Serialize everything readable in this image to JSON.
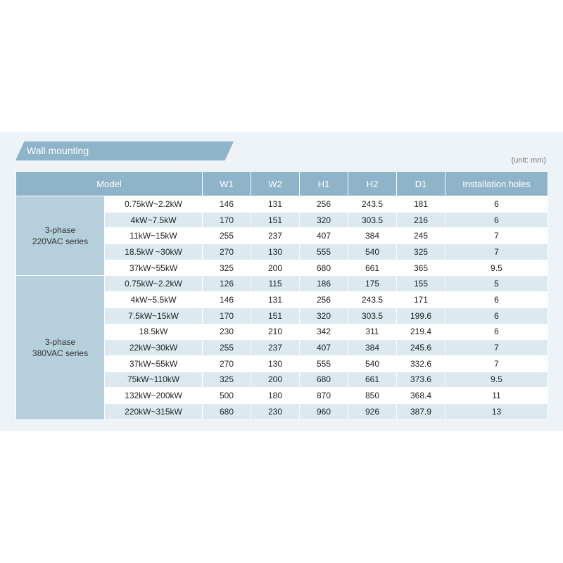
{
  "title": "Wall mounting",
  "unit": "(unit: mm)",
  "table": {
    "headers": [
      "Model",
      "W1",
      "W2",
      "H1",
      "H2",
      "D1",
      "Installation holes"
    ],
    "groups": [
      {
        "name": "3-phase 220VAC series",
        "rows": [
          [
            "0.75kW~2.2kW",
            "146",
            "131",
            "256",
            "243.5",
            "181",
            "6"
          ],
          [
            "4kW~7.5kW",
            "170",
            "151",
            "320",
            "303.5",
            "216",
            "6"
          ],
          [
            "11kW~15kW",
            "255",
            "237",
            "407",
            "384",
            "245",
            "7"
          ],
          [
            "18.5kW ~30kW",
            "270",
            "130",
            "555",
            "540",
            "325",
            "7"
          ],
          [
            "37kW~55kW",
            "325",
            "200",
            "680",
            "661",
            "365",
            "9.5"
          ]
        ]
      },
      {
        "name": "3-phase 380VAC series",
        "rows": [
          [
            "0.75kW~2.2kW",
            "126",
            "115",
            "186",
            "175",
            "155",
            "5"
          ],
          [
            "4kW~5.5kW",
            "146",
            "131",
            "256",
            "243.5",
            "171",
            "6"
          ],
          [
            "7.5kW~15kW",
            "170",
            "151",
            "320",
            "303.5",
            "199.6",
            "6"
          ],
          [
            "18.5kW",
            "230",
            "210",
            "342",
            "311",
            "219.4",
            "6"
          ],
          [
            "22kW~30kW",
            "255",
            "237",
            "407",
            "384",
            "245.6",
            "7"
          ],
          [
            "37kW~55kW",
            "270",
            "130",
            "555",
            "540",
            "332.6",
            "7"
          ],
          [
            "75kW~110kW",
            "325",
            "200",
            "680",
            "661",
            "373.6",
            "9.5"
          ],
          [
            "132kW~200kW",
            "500",
            "180",
            "870",
            "850",
            "368.4",
            "11"
          ],
          [
            "220kW~315kW",
            "680",
            "230",
            "960",
            "926",
            "387.9",
            "13"
          ]
        ]
      }
    ]
  }
}
